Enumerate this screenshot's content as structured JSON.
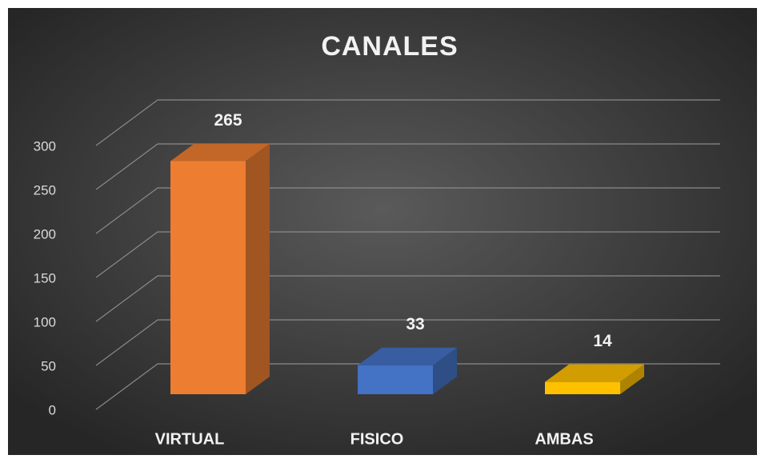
{
  "chart_data": {
    "type": "bar3d",
    "title": "CANALES",
    "categories": [
      "VIRTUAL",
      "FISICO",
      "AMBAS"
    ],
    "values": [
      265,
      33,
      14
    ],
    "colors": [
      "#ED7D31",
      "#4472C4",
      "#FFC000"
    ],
    "ylim": [
      0,
      300
    ],
    "yticks": [
      0,
      50,
      100,
      150,
      200,
      250,
      300
    ],
    "grid": true
  }
}
